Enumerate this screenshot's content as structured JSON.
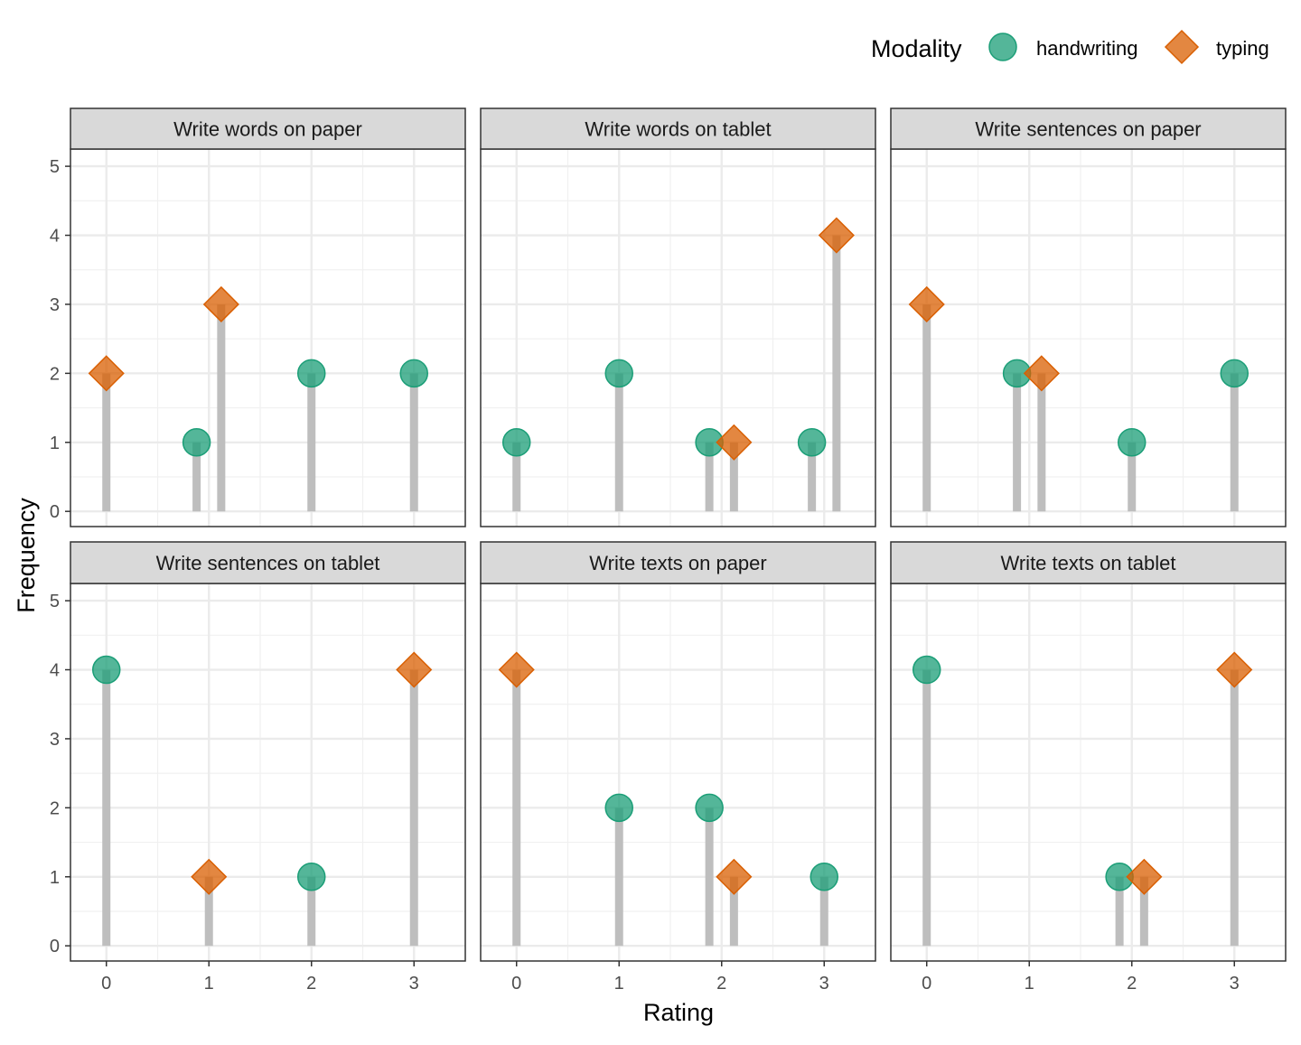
{
  "chart_data": {
    "type": "scatter",
    "geom": "lollipop",
    "xlabel": "Rating",
    "ylabel": "Frequency",
    "xlim": [
      -0.35,
      3.5
    ],
    "ylim": [
      -0.22,
      5.25
    ],
    "x_ticks": [
      0,
      1,
      2,
      3
    ],
    "y_ticks": [
      0,
      1,
      2,
      3,
      4,
      5
    ],
    "grid": true,
    "legend": {
      "title": "Modality",
      "position": "top-right",
      "entries": [
        {
          "name": "handwriting",
          "shape": "circle",
          "color": "#1b9e77"
        },
        {
          "name": "typing",
          "shape": "diamond",
          "color": "#d95f02"
        }
      ]
    },
    "colors": {
      "handwriting": "#1b9e77",
      "typing": "#d95f02",
      "stem": "#bebebe",
      "strip_fill": "#d9d9d9"
    },
    "panels": [
      {
        "title": "Write words on paper",
        "series": [
          {
            "name": "handwriting",
            "points": [
              {
                "x": 0.88,
                "y": 1
              },
              {
                "x": 2,
                "y": 2
              },
              {
                "x": 3,
                "y": 2
              }
            ]
          },
          {
            "name": "typing",
            "points": [
              {
                "x": 0,
                "y": 2
              },
              {
                "x": 1.12,
                "y": 3
              }
            ]
          }
        ]
      },
      {
        "title": "Write words on tablet",
        "series": [
          {
            "name": "handwriting",
            "points": [
              {
                "x": 0,
                "y": 1
              },
              {
                "x": 1,
                "y": 2
              },
              {
                "x": 1.88,
                "y": 1
              },
              {
                "x": 2.88,
                "y": 1
              }
            ]
          },
          {
            "name": "typing",
            "points": [
              {
                "x": 2.12,
                "y": 1
              },
              {
                "x": 3.12,
                "y": 4
              }
            ]
          }
        ]
      },
      {
        "title": "Write sentences on paper",
        "series": [
          {
            "name": "handwriting",
            "points": [
              {
                "x": 0.88,
                "y": 2
              },
              {
                "x": 2,
                "y": 1
              },
              {
                "x": 3,
                "y": 2
              }
            ]
          },
          {
            "name": "typing",
            "points": [
              {
                "x": 0,
                "y": 3
              },
              {
                "x": 1.12,
                "y": 2
              }
            ]
          }
        ]
      },
      {
        "title": "Write sentences on tablet",
        "series": [
          {
            "name": "handwriting",
            "points": [
              {
                "x": 0,
                "y": 4
              },
              {
                "x": 2,
                "y": 1
              }
            ]
          },
          {
            "name": "typing",
            "points": [
              {
                "x": 1,
                "y": 1
              },
              {
                "x": 3,
                "y": 4
              }
            ]
          }
        ]
      },
      {
        "title": "Write texts on paper",
        "series": [
          {
            "name": "handwriting",
            "points": [
              {
                "x": 1,
                "y": 2
              },
              {
                "x": 1.88,
                "y": 2
              },
              {
                "x": 3,
                "y": 1
              }
            ]
          },
          {
            "name": "typing",
            "points": [
              {
                "x": 0,
                "y": 4
              },
              {
                "x": 2.12,
                "y": 1
              }
            ]
          }
        ]
      },
      {
        "title": "Write texts on tablet",
        "series": [
          {
            "name": "handwriting",
            "points": [
              {
                "x": 0,
                "y": 4
              },
              {
                "x": 1.88,
                "y": 1
              }
            ]
          },
          {
            "name": "typing",
            "points": [
              {
                "x": 2.12,
                "y": 1
              },
              {
                "x": 3,
                "y": 4
              }
            ]
          }
        ]
      }
    ]
  }
}
